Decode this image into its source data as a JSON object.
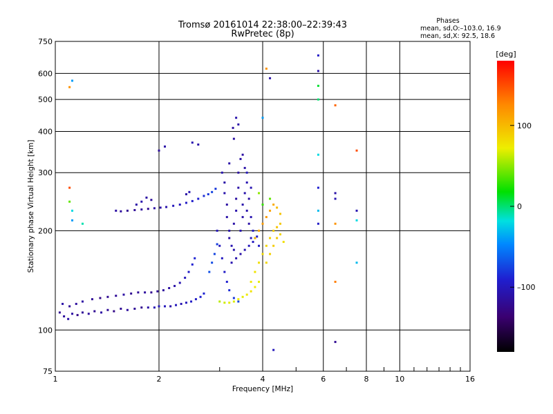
{
  "chart_data": {
    "type": "scatter",
    "title": "Tromsø 20161014 22:38:00–22:39:43",
    "subtitle": "RwPretec (8p)",
    "xlabel": "Frequency [MHz]",
    "ylabel": "Stationary phase Virtual Height [km]",
    "x_scale": "log",
    "y_scale": "log",
    "xlim": [
      1,
      16
    ],
    "ylim": [
      75,
      750
    ],
    "x_ticks": [
      1,
      2,
      4,
      6,
      8,
      10,
      16
    ],
    "x_tick_labels": [
      "1",
      "2",
      "4",
      "6",
      "8",
      "10",
      "16"
    ],
    "y_ticks": [
      75,
      100,
      200,
      300,
      400,
      500,
      600,
      750
    ],
    "y_tick_labels": [
      "75",
      "100",
      "200",
      "300",
      "400",
      "500",
      "600",
      "750"
    ],
    "grid": true,
    "phases_box": {
      "title": "Phases",
      "line_o": "mean, sd,O:–103.0, 16.9",
      "line_x": "mean, sd,X:  92.5, 18.6"
    },
    "colorbar": {
      "label": "[deg]",
      "range": [
        -180,
        180
      ],
      "ticks": [
        100,
        0,
        -100
      ],
      "tick_labels": [
        "100",
        "0",
        "–100"
      ]
    },
    "series": [
      {
        "points": [
          [
            1.03,
            113,
            -120
          ],
          [
            1.06,
            110,
            -115
          ],
          [
            1.09,
            108,
            -110
          ],
          [
            1.12,
            112,
            -112
          ],
          [
            1.16,
            111,
            -125
          ],
          [
            1.2,
            113,
            -118
          ],
          [
            1.25,
            112,
            -115
          ],
          [
            1.3,
            114,
            -120
          ],
          [
            1.36,
            113,
            -112
          ],
          [
            1.42,
            115,
            -118
          ],
          [
            1.48,
            114,
            -125
          ],
          [
            1.55,
            116,
            -120
          ],
          [
            1.62,
            115,
            -115
          ],
          [
            1.7,
            116,
            -118
          ],
          [
            1.78,
            117,
            -122
          ],
          [
            1.86,
            117,
            -110
          ],
          [
            1.94,
            117,
            -105
          ],
          [
            2.0,
            118,
            -100
          ],
          [
            2.08,
            118,
            -100
          ],
          [
            2.16,
            118,
            -110
          ],
          [
            2.24,
            119,
            -100
          ],
          [
            2.32,
            120,
            -105
          ],
          [
            2.4,
            121,
            -100
          ],
          [
            2.48,
            122,
            -95
          ],
          [
            2.56,
            124,
            -95
          ],
          [
            2.64,
            126,
            -90
          ],
          [
            2.7,
            129,
            -88
          ],
          [
            1.05,
            120,
            -110
          ],
          [
            1.1,
            118,
            -118
          ],
          [
            1.15,
            120,
            -115
          ],
          [
            1.2,
            122,
            -112
          ],
          [
            1.28,
            124,
            -118
          ],
          [
            1.35,
            125,
            -125
          ],
          [
            1.42,
            126,
            -120
          ],
          [
            1.5,
            127,
            -118
          ],
          [
            1.58,
            128,
            -112
          ],
          [
            1.66,
            129,
            -120
          ],
          [
            1.74,
            130,
            -118
          ],
          [
            1.82,
            130,
            -115
          ],
          [
            1.9,
            130,
            -122
          ],
          [
            1.98,
            131,
            -118
          ],
          [
            2.06,
            132,
            -115
          ],
          [
            2.14,
            134,
            -112
          ],
          [
            2.22,
            136,
            -110
          ],
          [
            2.3,
            139,
            -105
          ],
          [
            2.38,
            144,
            -100
          ],
          [
            2.44,
            150,
            -95
          ],
          [
            2.5,
            158,
            -90
          ],
          [
            2.54,
            165,
            -88
          ],
          [
            1.5,
            230,
            -112
          ],
          [
            1.55,
            229,
            -115
          ],
          [
            1.62,
            230,
            -120
          ],
          [
            1.7,
            231,
            -118
          ],
          [
            1.78,
            232,
            -115
          ],
          [
            1.86,
            233,
            -120
          ],
          [
            1.94,
            234,
            -112
          ],
          [
            2.02,
            235,
            -110
          ],
          [
            2.1,
            236,
            -108
          ],
          [
            2.2,
            238,
            -100
          ],
          [
            2.3,
            240,
            -100
          ],
          [
            2.4,
            243,
            -95
          ],
          [
            2.5,
            246,
            -92
          ],
          [
            2.6,
            250,
            -90
          ],
          [
            2.7,
            255,
            -85
          ],
          [
            2.78,
            258,
            -80
          ],
          [
            2.85,
            262,
            -75
          ],
          [
            2.92,
            268,
            -80
          ],
          [
            1.72,
            240,
            -110
          ],
          [
            1.78,
            245,
            -108
          ],
          [
            1.84,
            252,
            -112
          ],
          [
            1.9,
            248,
            -115
          ],
          [
            2.4,
            258,
            -110
          ],
          [
            2.45,
            262,
            -105
          ],
          [
            2.95,
            200,
            -100
          ],
          [
            3.0,
            180,
            -100
          ],
          [
            3.05,
            165,
            -98
          ],
          [
            3.1,
            150,
            -95
          ],
          [
            3.15,
            140,
            -90
          ],
          [
            3.2,
            132,
            -85
          ],
          [
            3.3,
            125,
            -80
          ],
          [
            3.4,
            122,
            -75
          ],
          [
            2.8,
            150,
            -70
          ],
          [
            2.85,
            160,
            -72
          ],
          [
            2.9,
            170,
            -75
          ],
          [
            2.95,
            182,
            -78
          ],
          [
            3.05,
            300,
            -105
          ],
          [
            3.1,
            280,
            -110
          ],
          [
            3.1,
            260,
            -108
          ],
          [
            3.15,
            240,
            -112
          ],
          [
            3.15,
            220,
            -110
          ],
          [
            3.2,
            200,
            -108
          ],
          [
            3.2,
            190,
            -112
          ],
          [
            3.25,
            180,
            -105
          ],
          [
            3.3,
            175,
            -108
          ],
          [
            3.3,
            210,
            -110
          ],
          [
            3.35,
            250,
            -112
          ],
          [
            3.35,
            230,
            -108
          ],
          [
            3.4,
            270,
            -110
          ],
          [
            3.4,
            300,
            -112
          ],
          [
            3.45,
            330,
            -110
          ],
          [
            3.45,
            200,
            -105
          ],
          [
            3.5,
            240,
            -108
          ],
          [
            3.5,
            220,
            -110
          ],
          [
            3.5,
            340,
            -112
          ],
          [
            3.55,
            260,
            -108
          ],
          [
            3.55,
            310,
            -110
          ],
          [
            3.6,
            280,
            -105
          ],
          [
            3.6,
            230,
            -108
          ],
          [
            3.65,
            210,
            -110
          ],
          [
            3.65,
            250,
            -112
          ],
          [
            3.7,
            220,
            -105
          ],
          [
            3.7,
            190,
            -100
          ],
          [
            3.75,
            200,
            -98
          ],
          [
            3.8,
            190,
            -100
          ],
          [
            3.25,
            160,
            -105
          ],
          [
            3.35,
            165,
            -108
          ],
          [
            3.45,
            170,
            -110
          ],
          [
            3.55,
            175,
            -105
          ],
          [
            3.65,
            180,
            -100
          ],
          [
            3.75,
            185,
            -98
          ],
          [
            3.85,
            192,
            -95
          ],
          [
            3.2,
            320,
            -110
          ],
          [
            3.3,
            380,
            -112
          ],
          [
            3.4,
            420,
            -110
          ],
          [
            3.35,
            440,
            -108
          ],
          [
            3.28,
            410,
            -112
          ],
          [
            2.0,
            350,
            -115
          ],
          [
            2.08,
            360,
            -110
          ],
          [
            2.5,
            370,
            -105
          ],
          [
            2.6,
            365,
            -110
          ],
          [
            3.9,
            180,
            -95
          ],
          [
            3.6,
            300,
            -100
          ],
          [
            3.7,
            270,
            -105
          ],
          [
            3.0,
            122,
            60
          ],
          [
            3.1,
            121,
            65
          ],
          [
            3.2,
            121,
            70
          ],
          [
            3.3,
            122,
            68
          ],
          [
            3.4,
            124,
            72
          ],
          [
            3.5,
            126,
            70
          ],
          [
            3.6,
            128,
            75
          ],
          [
            3.7,
            131,
            78
          ],
          [
            3.8,
            135,
            72
          ],
          [
            3.9,
            140,
            70
          ],
          [
            3.7,
            140,
            75
          ],
          [
            3.8,
            150,
            78
          ],
          [
            3.9,
            160,
            80
          ],
          [
            4.0,
            170,
            82
          ],
          [
            4.1,
            180,
            85
          ],
          [
            4.2,
            190,
            88
          ],
          [
            4.3,
            200,
            90
          ],
          [
            4.4,
            205,
            95
          ],
          [
            4.5,
            210,
            92
          ],
          [
            3.8,
            190,
            100
          ],
          [
            3.9,
            200,
            110
          ],
          [
            4.0,
            210,
            115
          ],
          [
            4.1,
            220,
            118
          ],
          [
            4.2,
            230,
            112
          ],
          [
            4.3,
            240,
            108
          ],
          [
            4.4,
            235,
            100
          ],
          [
            4.5,
            225,
            95
          ],
          [
            4.1,
            160,
            85
          ],
          [
            4.2,
            170,
            88
          ],
          [
            4.3,
            180,
            90
          ],
          [
            4.4,
            190,
            92
          ],
          [
            4.5,
            195,
            85
          ],
          [
            4.6,
            185,
            80
          ],
          [
            4.0,
            240,
            30
          ],
          [
            4.2,
            250,
            40
          ],
          [
            3.9,
            260,
            50
          ],
          [
            5.8,
            680,
            -95
          ],
          [
            5.8,
            610,
            -110
          ],
          [
            5.8,
            550,
            10
          ],
          [
            5.8,
            500,
            0
          ],
          [
            5.8,
            340,
            -20
          ],
          [
            5.8,
            270,
            -90
          ],
          [
            5.8,
            230,
            -30
          ],
          [
            5.8,
            210,
            -95
          ],
          [
            6.5,
            260,
            -110
          ],
          [
            6.5,
            250,
            -105
          ],
          [
            6.5,
            210,
            120
          ],
          [
            6.5,
            140,
            130
          ],
          [
            6.5,
            92,
            -120
          ],
          [
            6.5,
            480,
            140
          ],
          [
            7.5,
            230,
            -105
          ],
          [
            7.5,
            215,
            -20
          ],
          [
            7.5,
            160,
            -30
          ],
          [
            7.5,
            350,
            150
          ],
          [
            4.1,
            620,
            120
          ],
          [
            4.2,
            580,
            -110
          ],
          [
            4.0,
            440,
            -40
          ],
          [
            4.3,
            87,
            -100
          ],
          [
            1.12,
            570,
            -40
          ],
          [
            1.1,
            545,
            120
          ],
          [
            1.1,
            270,
            150
          ],
          [
            1.1,
            245,
            40
          ],
          [
            1.12,
            230,
            -20
          ],
          [
            1.12,
            215,
            -40
          ],
          [
            1.2,
            210,
            -10
          ]
        ]
      }
    ]
  }
}
